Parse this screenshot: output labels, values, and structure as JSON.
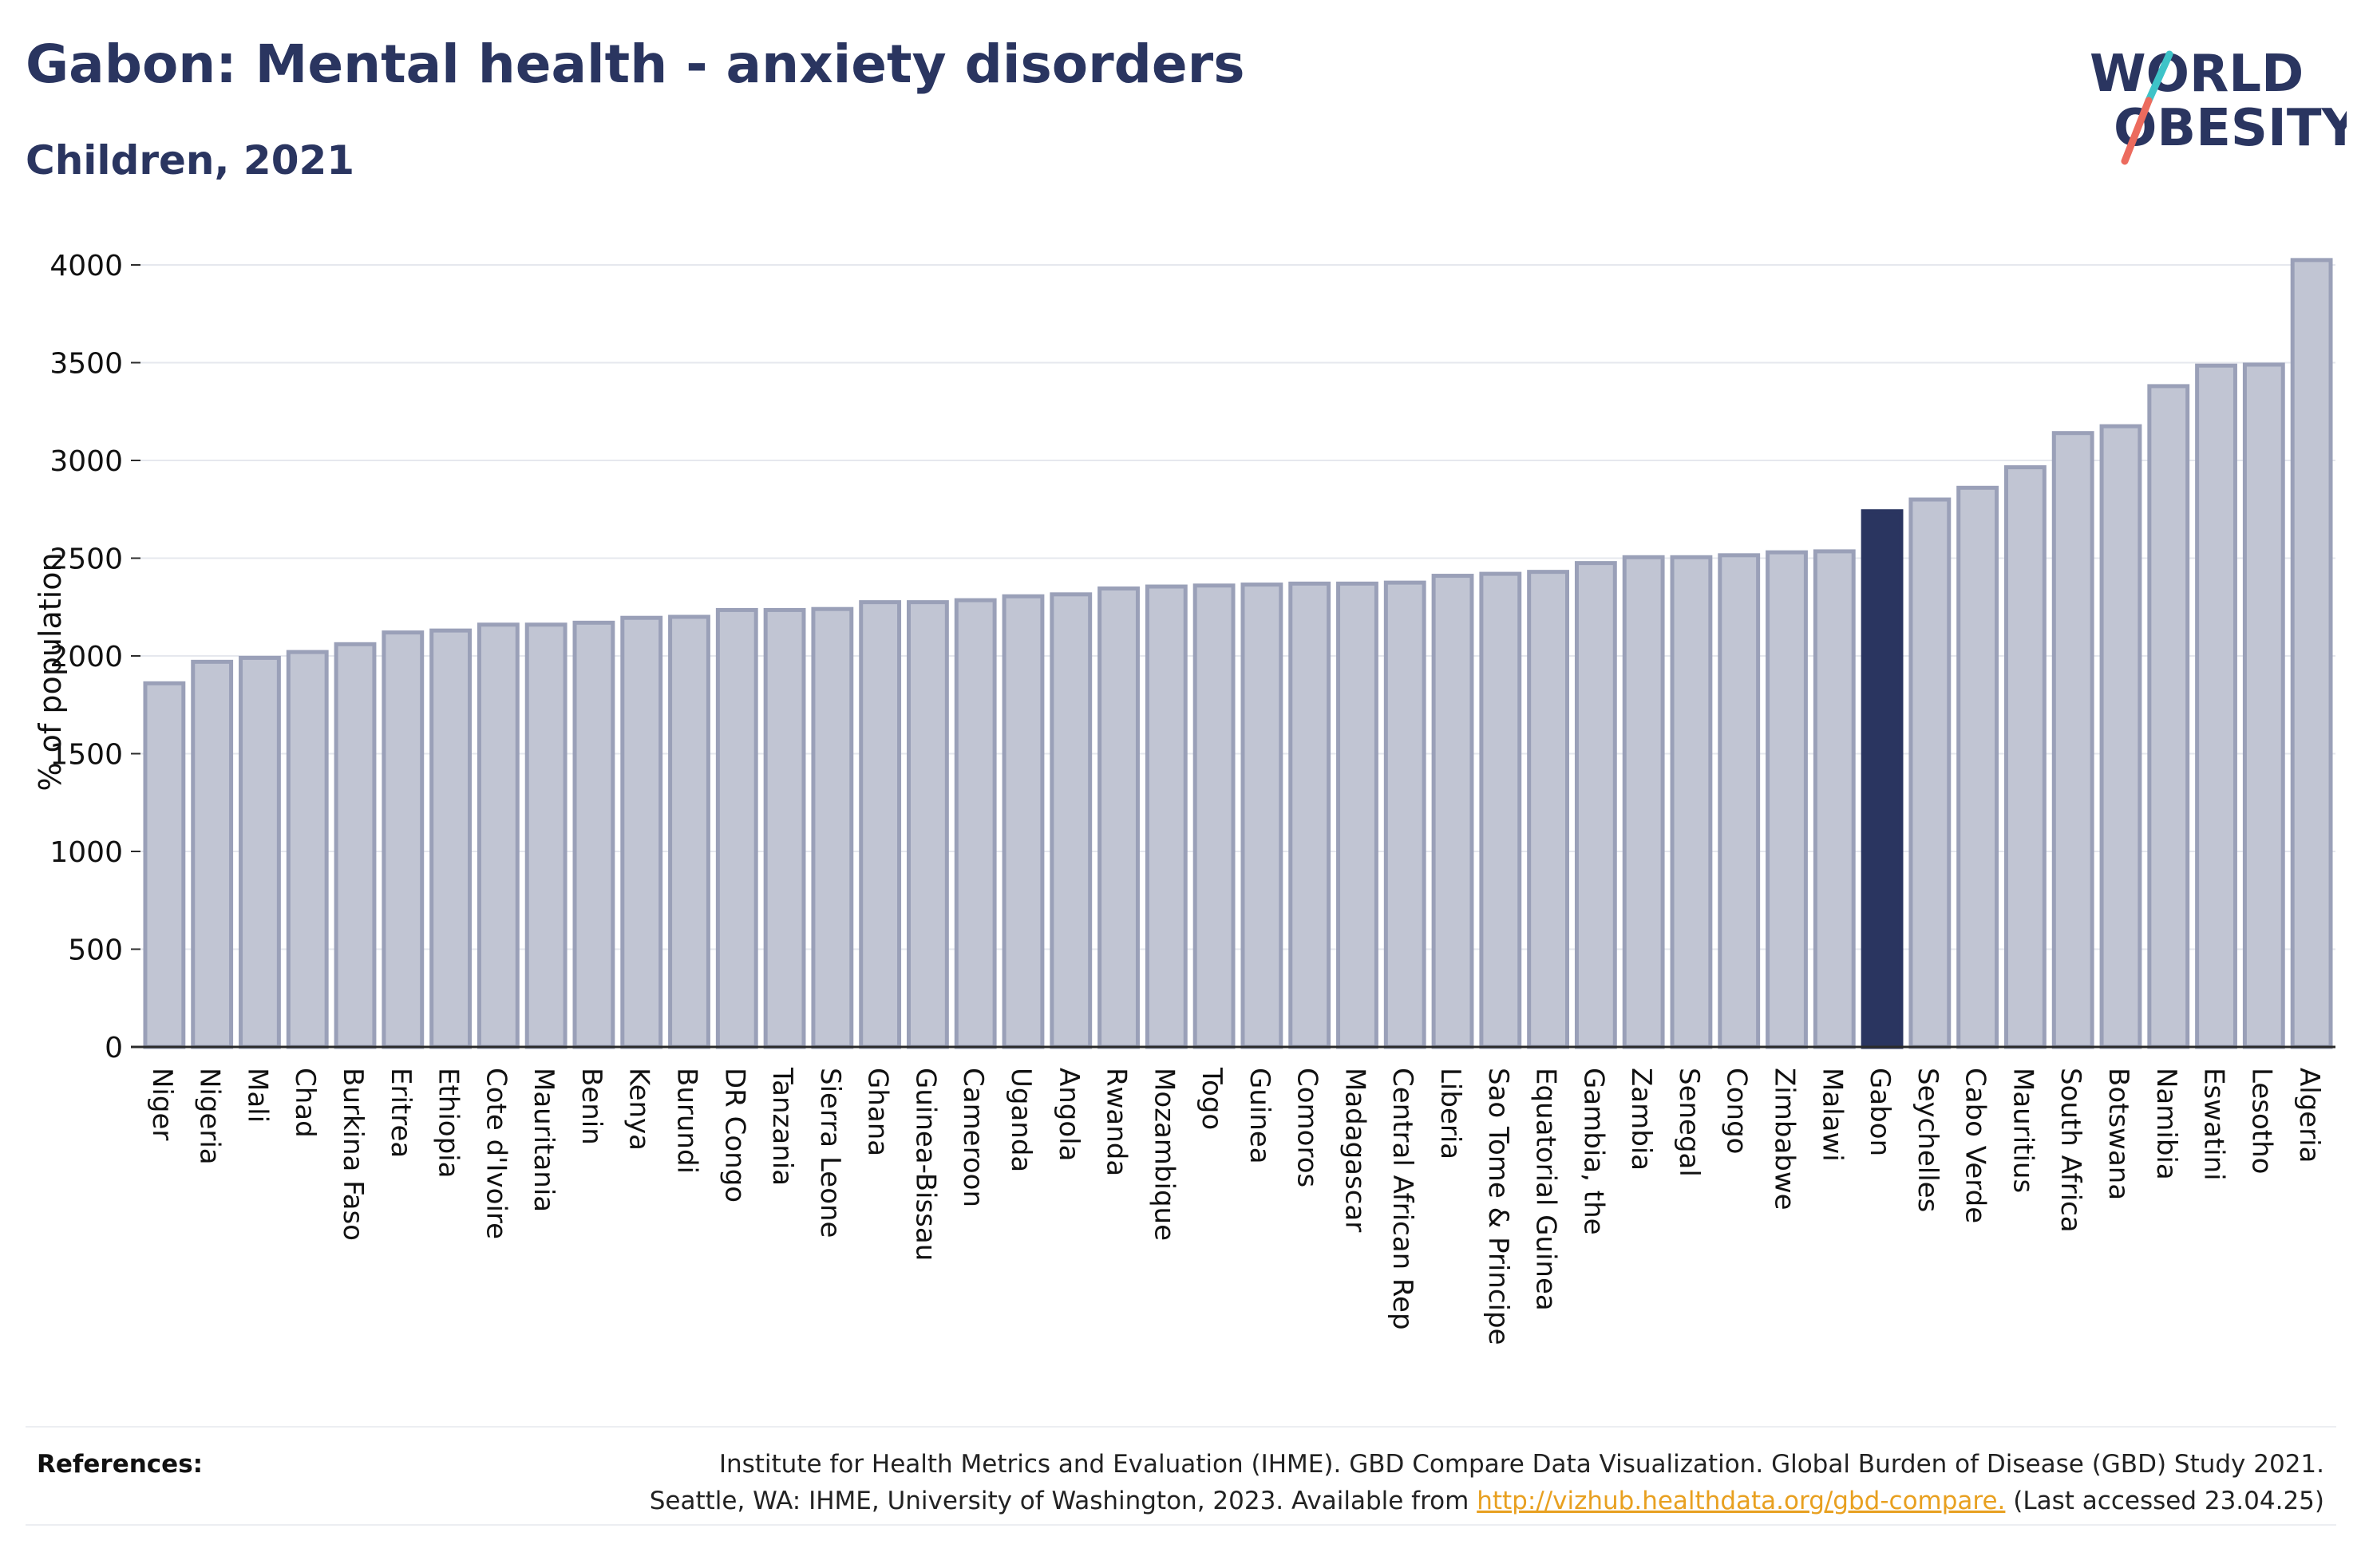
{
  "header": {
    "title": "Gabon: Mental health - anxiety disorders",
    "subtitle": "Children, 2021"
  },
  "logo": {
    "line1": "WORLD",
    "line2": "OBESITY",
    "text_color": "#2a3560",
    "slash_colors": [
      "#3ec3c8",
      "#ec6b5e"
    ]
  },
  "chart_data": {
    "type": "bar",
    "title": "Gabon: Mental health - anxiety disorders",
    "subtitle": "Children, 2021",
    "ylabel": "% of population",
    "xlabel": "",
    "ylim": [
      0,
      4000
    ],
    "yticks": [
      0,
      500,
      1000,
      1500,
      2000,
      2500,
      3000,
      3500,
      4000
    ],
    "grid": true,
    "highlight": "Gabon",
    "colors": {
      "bar": "#c1c5d3",
      "bar_edge": "#9aa0b8",
      "highlight": "#2a3560"
    },
    "categories": [
      "Niger",
      "Nigeria",
      "Mali",
      "Chad",
      "Burkina Faso",
      "Eritrea",
      "Ethiopia",
      "Cote d'Ivoire",
      "Mauritania",
      "Benin",
      "Kenya",
      "Burundi",
      "DR Congo",
      "Tanzania",
      "Sierra Leone",
      "Ghana",
      "Guinea-Bissau",
      "Cameroon",
      "Uganda",
      "Angola",
      "Rwanda",
      "Mozambique",
      "Togo",
      "Guinea",
      "Comoros",
      "Madagascar",
      "Central African Rep",
      "Liberia",
      "Sao Tome & Principe",
      "Equatorial Guinea",
      "Gambia, the",
      "Zambia",
      "Senegal",
      "Congo",
      "Zimbabwe",
      "Malawi",
      "Gabon",
      "Seychelles",
      "Cabo Verde",
      "Mauritius",
      "South Africa",
      "Botswana",
      "Namibia",
      "Eswatini",
      "Lesotho",
      "Algeria"
    ],
    "values": [
      1860,
      1970,
      1990,
      2020,
      2060,
      2120,
      2130,
      2160,
      2160,
      2170,
      2195,
      2200,
      2235,
      2235,
      2240,
      2275,
      2275,
      2285,
      2305,
      2315,
      2345,
      2355,
      2360,
      2365,
      2370,
      2370,
      2375,
      2410,
      2420,
      2430,
      2475,
      2505,
      2505,
      2515,
      2530,
      2535,
      2740,
      2800,
      2860,
      2965,
      3140,
      3175,
      3380,
      3485,
      3490,
      4025
    ]
  },
  "footer": {
    "references_label": "References:",
    "line1": "Institute for Health Metrics and Evaluation (IHME). GBD Compare Data Visualization. Global Burden of Disease (GBD) Study 2021.",
    "line2_prefix": "Seattle, WA: IHME, University of Washington, 2023. Available from ",
    "link_text": "http://vizhub.healthdata.org/gbd-compare.",
    "line2_suffix": " (Last accessed 23.04.25)"
  }
}
